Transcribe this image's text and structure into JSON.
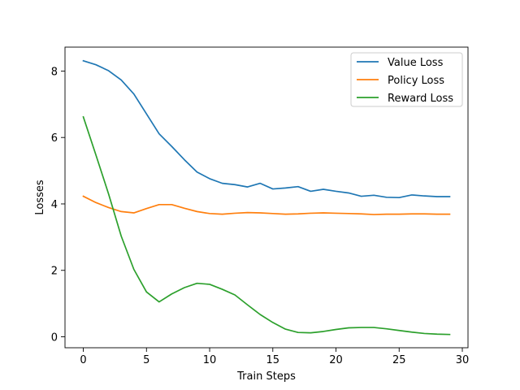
{
  "chart_data": {
    "type": "line",
    "title": "",
    "xlabel": "Train Steps",
    "ylabel": "Losses",
    "xlim": [
      -1.45,
      30.45
    ],
    "ylim": [
      -0.33,
      8.72
    ],
    "xticks": [
      0,
      5,
      10,
      15,
      20,
      25,
      30
    ],
    "yticks": [
      0,
      2,
      4,
      6,
      8
    ],
    "grid": false,
    "legend_position": "top-right",
    "x": [
      0,
      1,
      2,
      3,
      4,
      5,
      6,
      7,
      8,
      9,
      10,
      11,
      12,
      13,
      14,
      15,
      16,
      17,
      18,
      19,
      20,
      21,
      22,
      23,
      24,
      25,
      26,
      27,
      28,
      29
    ],
    "series": [
      {
        "name": "Value Loss",
        "color": "#1f77b4",
        "values": [
          8.31,
          8.19,
          8.01,
          7.73,
          7.31,
          6.71,
          6.11,
          5.73,
          5.33,
          4.96,
          4.76,
          4.62,
          4.58,
          4.51,
          4.62,
          4.45,
          4.48,
          4.52,
          4.38,
          4.44,
          4.38,
          4.33,
          4.23,
          4.26,
          4.2,
          4.19,
          4.27,
          4.24,
          4.22,
          4.22
        ]
      },
      {
        "name": "Policy Loss",
        "color": "#ff7f0e",
        "values": [
          4.23,
          4.04,
          3.89,
          3.77,
          3.73,
          3.86,
          3.98,
          3.98,
          3.87,
          3.77,
          3.71,
          3.69,
          3.72,
          3.74,
          3.73,
          3.71,
          3.69,
          3.7,
          3.72,
          3.73,
          3.72,
          3.71,
          3.7,
          3.68,
          3.69,
          3.69,
          3.7,
          3.7,
          3.69,
          3.69
        ]
      },
      {
        "name": "Reward Loss",
        "color": "#2ca02c",
        "values": [
          6.62,
          5.47,
          4.3,
          3.03,
          2.03,
          1.35,
          1.05,
          1.29,
          1.48,
          1.61,
          1.58,
          1.43,
          1.26,
          0.96,
          0.67,
          0.43,
          0.23,
          0.13,
          0.12,
          0.16,
          0.22,
          0.27,
          0.28,
          0.28,
          0.24,
          0.19,
          0.14,
          0.1,
          0.08,
          0.07
        ]
      }
    ]
  }
}
